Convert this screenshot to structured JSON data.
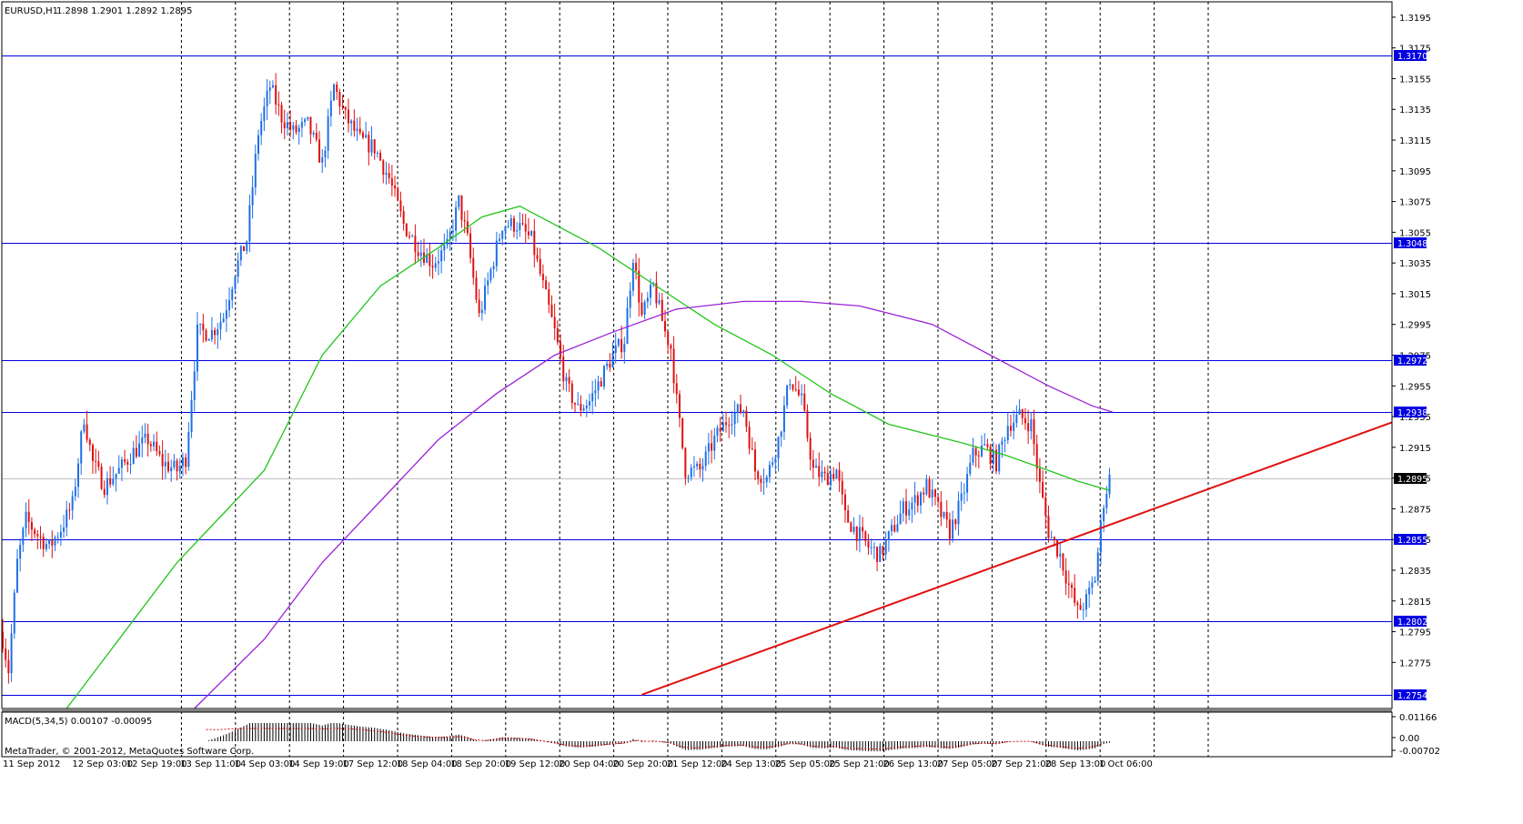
{
  "header": {
    "symbol": "EURUSD,H1",
    "ohlc": "1.2898 1.2901 1.2892 1.2895"
  },
  "macd": {
    "label": "MACD(5,34,5) 0.00107 -0.00095",
    "axis_labels": [
      "0.01166",
      "0.00",
      "-0.00702"
    ]
  },
  "copyright": "MetaTrader, © 2001-2012, MetaQuotes Software Corp.",
  "current_price": "1.2895",
  "colors": {
    "bull": "#1e6fe6",
    "bear": "#e01010",
    "ma_fast": "#22c51a",
    "ma_slow": "#9a22d8",
    "level": "#0000e0",
    "trend": "#e01010",
    "grid": "#000000",
    "price_tag": "#000000"
  },
  "chart_data": {
    "type": "candlestick",
    "title": "EURUSD,H1",
    "ylim": [
      1.2745,
      1.3205
    ],
    "y_ticks": [
      "1.3195",
      "1.3175",
      "1.3155",
      "1.3135",
      "1.3115",
      "1.3095",
      "1.3075",
      "1.3055",
      "1.3035",
      "1.3015",
      "1.2995",
      "1.2975",
      "1.2955",
      "1.2935",
      "1.2915",
      "1.2895",
      "1.2875",
      "1.2855",
      "1.2835",
      "1.2815",
      "1.2795",
      "1.2775"
    ],
    "x_labels": [
      "11 Sep 2012",
      "12 Sep 03:00",
      "12 Sep 19:00",
      "13 Sep 11:00",
      "14 Sep 03:00",
      "14 Sep 19:00",
      "17 Sep 12:00",
      "18 Sep 04:00",
      "18 Sep 20:00",
      "19 Sep 12:00",
      "20 Sep 04:00",
      "20 Sep 20:00",
      "21 Sep 12:00",
      "24 Sep 13:00",
      "25 Sep 05:00",
      "25 Sep 21:00",
      "26 Sep 13:00",
      "27 Sep 05:00",
      "27 Sep 21:00",
      "28 Sep 13:00",
      "1 Oct 06:00"
    ],
    "horizontal_levels": [
      "1.3170",
      "1.3048",
      "1.2972",
      "1.2938",
      "1.2855",
      "1.2802",
      "1.2754"
    ],
    "trendline": {
      "from": {
        "bar": 220,
        "price": 1.2754
      },
      "to": {
        "bar": 389,
        "price": 1.287
      }
    },
    "price_path": [
      [
        0,
        1.279
      ],
      [
        2,
        1.277
      ],
      [
        5,
        1.284
      ],
      [
        8,
        1.2868
      ],
      [
        12,
        1.2858
      ],
      [
        16,
        1.285
      ],
      [
        20,
        1.2862
      ],
      [
        24,
        1.2878
      ],
      [
        28,
        1.2935
      ],
      [
        31,
        1.2905
      ],
      [
        35,
        1.289
      ],
      [
        40,
        1.29
      ],
      [
        45,
        1.2912
      ],
      [
        50,
        1.292
      ],
      [
        55,
        1.2905
      ],
      [
        60,
        1.29
      ],
      [
        63,
        1.2908
      ],
      [
        67,
        1.299
      ],
      [
        72,
        1.299
      ],
      [
        76,
        1.3
      ],
      [
        80,
        1.303
      ],
      [
        84,
        1.305
      ],
      [
        88,
        1.312
      ],
      [
        92,
        1.315
      ],
      [
        96,
        1.313
      ],
      [
        100,
        1.312
      ],
      [
        105,
        1.3125
      ],
      [
        110,
        1.31
      ],
      [
        114,
        1.315
      ],
      [
        118,
        1.313
      ],
      [
        123,
        1.3115
      ],
      [
        128,
        1.311
      ],
      [
        133,
        1.309
      ],
      [
        138,
        1.306
      ],
      [
        143,
        1.3045
      ],
      [
        148,
        1.3035
      ],
      [
        153,
        1.3045
      ],
      [
        157,
        1.3075
      ],
      [
        160,
        1.305
      ],
      [
        164,
        1.3
      ],
      [
        168,
        1.303
      ],
      [
        172,
        1.306
      ],
      [
        177,
        1.306
      ],
      [
        182,
        1.305
      ],
      [
        186,
        1.302
      ],
      [
        190,
        1.299
      ],
      [
        194,
        1.2955
      ],
      [
        198,
        1.294
      ],
      [
        202,
        1.2945
      ],
      [
        206,
        1.296
      ],
      [
        210,
        1.2975
      ],
      [
        214,
        1.2985
      ],
      [
        217,
        1.304
      ],
      [
        220,
        1.3
      ],
      [
        224,
        1.302
      ],
      [
        228,
        1.299
      ],
      [
        230,
        1.298
      ],
      [
        232,
        1.2945
      ],
      [
        235,
        1.29
      ],
      [
        240,
        1.29
      ],
      [
        245,
        1.292
      ],
      [
        250,
        1.2935
      ],
      [
        255,
        1.294
      ],
      [
        259,
        1.29
      ],
      [
        263,
        1.2895
      ],
      [
        267,
        1.292
      ],
      [
        271,
        1.296
      ],
      [
        275,
        1.2945
      ],
      [
        279,
        1.29
      ],
      [
        283,
        1.2895
      ],
      [
        287,
        1.29
      ],
      [
        290,
        1.287
      ],
      [
        294,
        1.286
      ],
      [
        298,
        1.285
      ],
      [
        302,
        1.2845
      ],
      [
        306,
        1.286
      ],
      [
        310,
        1.2875
      ],
      [
        314,
        1.288
      ],
      [
        318,
        1.289
      ],
      [
        322,
        1.2875
      ],
      [
        326,
        1.286
      ],
      [
        330,
        1.288
      ],
      [
        334,
        1.291
      ],
      [
        338,
        1.2915
      ],
      [
        342,
        1.2905
      ],
      [
        346,
        1.293
      ],
      [
        350,
        1.2935
      ],
      [
        354,
        1.293
      ],
      [
        357,
        1.289
      ],
      [
        360,
        1.286
      ],
      [
        364,
        1.2845
      ],
      [
        367,
        1.2825
      ],
      [
        370,
        1.2808
      ],
      [
        373,
        1.2815
      ],
      [
        376,
        1.283
      ],
      [
        379,
        1.288
      ],
      [
        381,
        1.2895
      ]
    ],
    "ma_fast_path": [
      [
        22,
        1.2745
      ],
      [
        60,
        1.284
      ],
      [
        90,
        1.29
      ],
      [
        110,
        1.2975
      ],
      [
        130,
        1.302
      ],
      [
        150,
        1.3045
      ],
      [
        165,
        1.3065
      ],
      [
        178,
        1.3072
      ],
      [
        190,
        1.306
      ],
      [
        205,
        1.3045
      ],
      [
        225,
        1.302
      ],
      [
        245,
        1.2995
      ],
      [
        265,
        1.2975
      ],
      [
        285,
        1.295
      ],
      [
        305,
        1.293
      ],
      [
        330,
        1.2918
      ],
      [
        345,
        1.291
      ],
      [
        360,
        1.29
      ],
      [
        370,
        1.2893
      ],
      [
        381,
        1.2887
      ]
    ],
    "ma_slow_path": [
      [
        66,
        1.2745
      ],
      [
        90,
        1.279
      ],
      [
        110,
        1.284
      ],
      [
        130,
        1.288
      ],
      [
        150,
        1.292
      ],
      [
        170,
        1.295
      ],
      [
        190,
        1.2975
      ],
      [
        210,
        1.299
      ],
      [
        232,
        1.3005
      ],
      [
        255,
        1.301
      ],
      [
        275,
        1.301
      ],
      [
        295,
        1.3007
      ],
      [
        320,
        1.2995
      ],
      [
        340,
        1.2975
      ],
      [
        360,
        1.2955
      ],
      [
        375,
        1.2942
      ],
      [
        382,
        1.2938
      ]
    ]
  }
}
